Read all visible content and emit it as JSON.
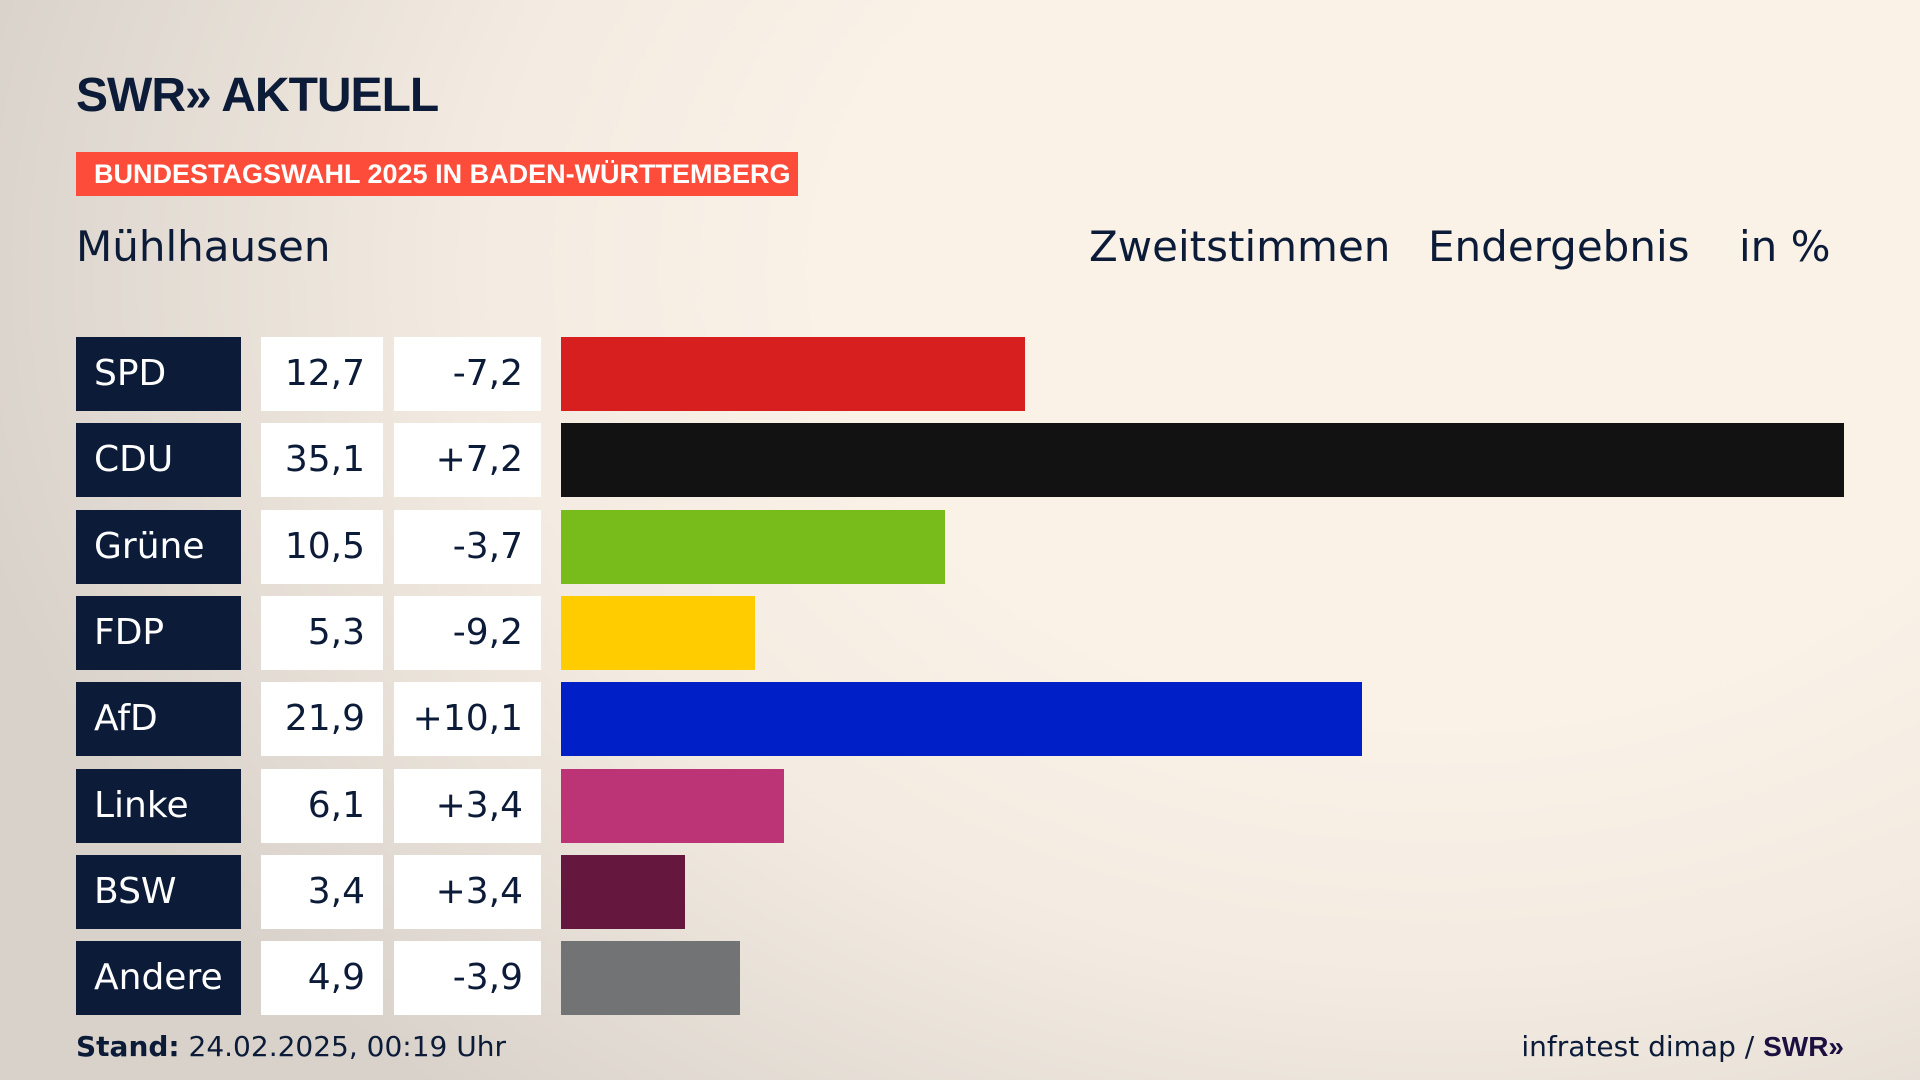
{
  "header": {
    "logo": "SWR» AKTUELL",
    "banner": "BUNDESTAGSWAHL 2025 IN BADEN-WÜRTTEMBERG",
    "place": "Mühlhausen",
    "vote_type": "Zweitstimmen",
    "result_type": "Endergebnis",
    "unit": "in %"
  },
  "footer": {
    "stand_label": "Stand:",
    "stand_value": "24.02.2025, 00:19 Uhr",
    "source": "infratest dimap / ",
    "source_logo": "SWR»"
  },
  "chart_data": {
    "type": "bar",
    "title": "Zweitstimmen Endergebnis in %",
    "xlim": [
      0,
      35.1
    ],
    "categories": [
      "SPD",
      "CDU",
      "Grüne",
      "FDP",
      "AfD",
      "Linke",
      "BSW",
      "Andere"
    ],
    "values": [
      12.7,
      35.1,
      10.5,
      5.3,
      21.9,
      6.1,
      3.4,
      4.9
    ],
    "value_labels": [
      "12,7",
      "35,1",
      "10,5",
      "5,3",
      "21,9",
      "6,1",
      "3,4",
      "4,9"
    ],
    "diff_labels": [
      "-7,2",
      "+7,2",
      "-3,7",
      "-9,2",
      "+10,1",
      "+3,4",
      "+3,4",
      "-3,9"
    ],
    "colors": [
      "#d71f20",
      "#121212",
      "#78bc1b",
      "#ffcc00",
      "#001fc7",
      "#bc3475",
      "#66173d",
      "#717375"
    ]
  }
}
